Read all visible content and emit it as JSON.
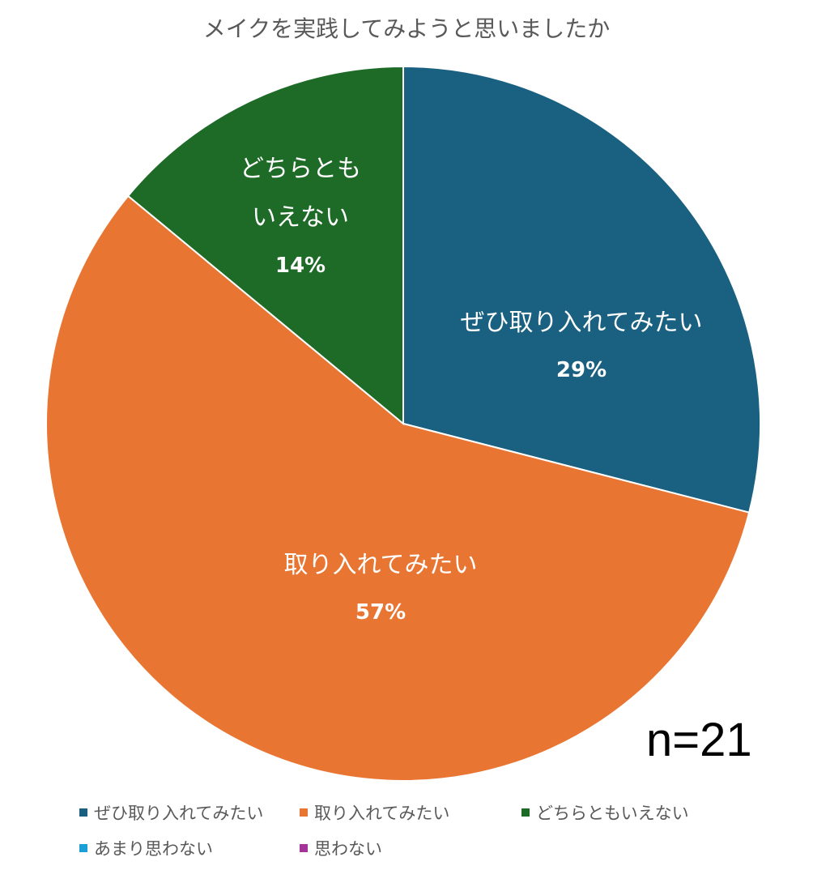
{
  "chart_data": {
    "type": "pie",
    "title": "メイクを実践してみようと思いましたか",
    "annotation": "n=21",
    "legend_position": "bottom",
    "slices": [
      {
        "label": "ぜひ取り入れてみたい",
        "value": 29,
        "data_label": "29%",
        "color": "#1a6080"
      },
      {
        "label": "取り入れてみたい",
        "value": 57,
        "data_label": "57%",
        "color": "#e97532"
      },
      {
        "label": "どちらともいえない",
        "value": 14,
        "data_label": "14%",
        "color": "#1e6b28"
      },
      {
        "label": "あまり思わない",
        "value": 0,
        "data_label": "",
        "color": "#1aa0d6"
      },
      {
        "label": "思わない",
        "value": 0,
        "data_label": "",
        "color": "#a33398"
      }
    ]
  }
}
